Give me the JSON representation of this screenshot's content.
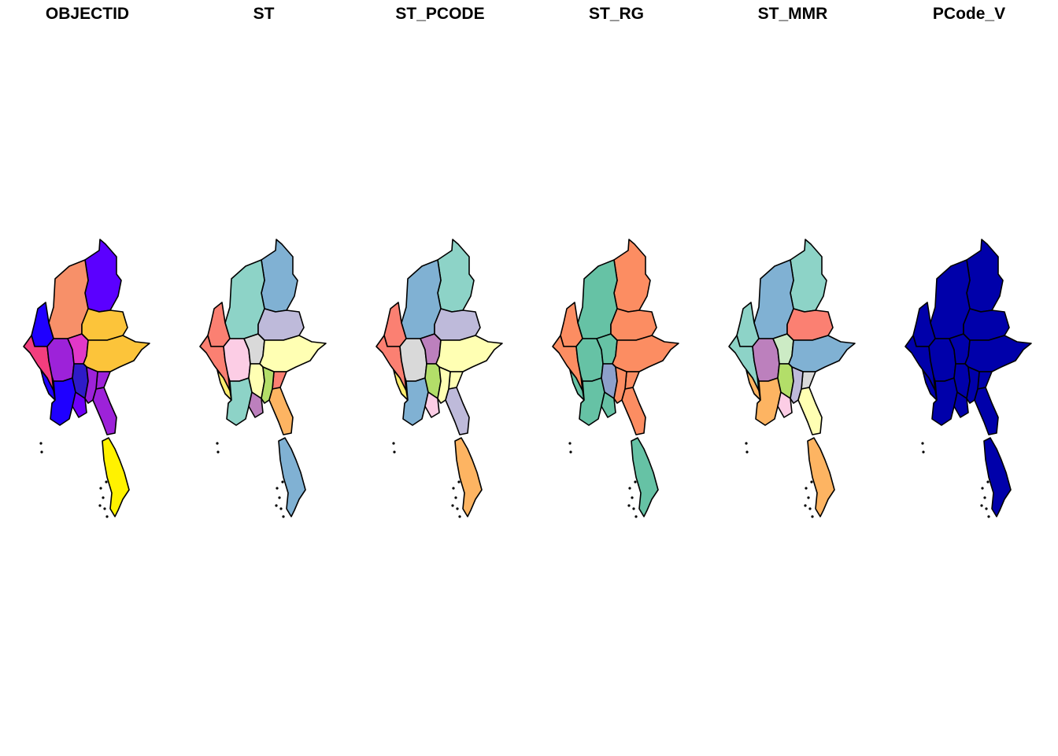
{
  "panels": [
    {
      "title": "OBJECTID",
      "colors": {
        "north": "#5B00FF",
        "northwest": "#F79069",
        "west": "#1F00FF",
        "coast": "#F23E7E",
        "centralL": "#9D22D9",
        "centralR": "#E138C8",
        "east": "#FCC43A",
        "southeast": "#FCC43A",
        "delta": "#1F00FF",
        "deltaW": "#1F00FF",
        "midS": "#2E1BC8",
        "yangon": "#6F00F7",
        "bago": "#9D22D9",
        "mon": "#9D22D9",
        "tanintharyi": "#FFF200",
        "kayah": "#9D22D9"
      }
    },
    {
      "title": "ST",
      "colors": {
        "north": "#80B1D3",
        "northwest": "#8DD3C7",
        "west": "#FB8072",
        "coast": "#FB8072",
        "centralL": "#FCCDE5",
        "centralR": "#D9D9D9",
        "east": "#BEBADA",
        "southeast": "#FFFFB3",
        "delta": "#8DD3C7",
        "deltaW": "#FFED6F",
        "midS": "#FFFFB3",
        "yangon": "#BC80BD",
        "bago": "#B3DE69",
        "mon": "#FDB462",
        "tanintharyi": "#80B1D3",
        "kayah": "#FB8072"
      }
    },
    {
      "title": "ST_PCODE",
      "colors": {
        "north": "#8DD3C7",
        "northwest": "#80B1D3",
        "west": "#FB8072",
        "coast": "#FB8072",
        "centralL": "#D9D9D9",
        "centralR": "#BC80BD",
        "east": "#BEBADA",
        "southeast": "#FFFFB3",
        "delta": "#80B1D3",
        "deltaW": "#FFED6F",
        "midS": "#B3DE69",
        "yangon": "#FCCDE5",
        "bago": "#FFFFB3",
        "mon": "#BEBADA",
        "tanintharyi": "#FDB462",
        "kayah": "#FFFFB3"
      }
    },
    {
      "title": "ST_RG",
      "colors": {
        "north": "#FC8D62",
        "northwest": "#66C2A5",
        "west": "#FC8D62",
        "coast": "#FC8D62",
        "centralL": "#66C2A5",
        "centralR": "#66C2A5",
        "east": "#FC8D62",
        "southeast": "#FC8D62",
        "delta": "#66C2A5",
        "deltaW": "#66C2A5",
        "midS": "#8DA0CB",
        "yangon": "#66C2A5",
        "bago": "#FC8D62",
        "mon": "#FC8D62",
        "tanintharyi": "#66C2A5",
        "kayah": "#FC8D62"
      }
    },
    {
      "title": "ST_MMR",
      "colors": {
        "north": "#8DD3C7",
        "northwest": "#80B1D3",
        "west": "#8DD3C7",
        "coast": "#8DD3C7",
        "centralL": "#BC80BD",
        "centralR": "#CCEBC5",
        "east": "#FB8072",
        "southeast": "#80B1D3",
        "delta": "#FDB462",
        "deltaW": "#FDB462",
        "midS": "#B3DE69",
        "yangon": "#FCCDE5",
        "bago": "#BEBADA",
        "mon": "#FFFFB3",
        "tanintharyi": "#FDB462",
        "kayah": "#D9D9D9"
      }
    },
    {
      "title": "PCode_V",
      "colors": {
        "north": "#0000AA",
        "northwest": "#0000AA",
        "west": "#0000AA",
        "coast": "#0000AA",
        "centralL": "#0000AA",
        "centralR": "#0000AA",
        "east": "#0000AA",
        "southeast": "#0000AA",
        "delta": "#0000AA",
        "deltaW": "#0000AA",
        "midS": "#0000AA",
        "yangon": "#0000AA",
        "bago": "#0000AA",
        "mon": "#0000AA",
        "tanintharyi": "#0000AA",
        "kayah": "#0000AA"
      }
    }
  ]
}
